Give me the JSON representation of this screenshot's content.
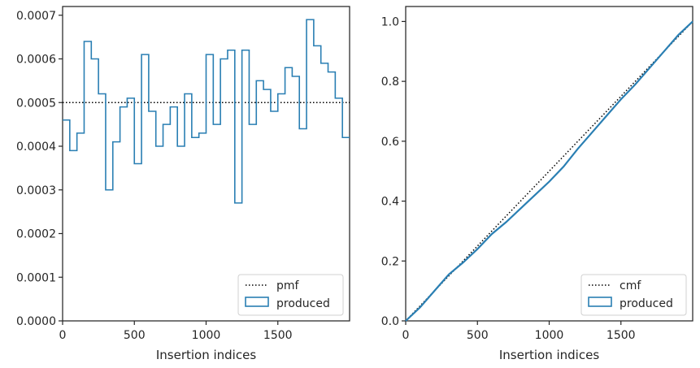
{
  "colors": {
    "produced": "#2a7fb3",
    "reference": "#000000",
    "axis": "#262626"
  },
  "chart_data": [
    {
      "type": "step",
      "xlabel": "Insertion indices",
      "ylabel": "",
      "xlim": [
        0,
        2000
      ],
      "ylim": [
        0,
        0.00072
      ],
      "xticks": [
        0,
        500,
        1000,
        1500
      ],
      "xtick_labels": [
        "0",
        "500",
        "1000",
        "1500"
      ],
      "yticks": [
        0,
        0.0001,
        0.0002,
        0.0003,
        0.0004,
        0.0005,
        0.0006,
        0.0007
      ],
      "ytick_labels": [
        "0.0000",
        "0.0001",
        "0.0002",
        "0.0003",
        "0.0004",
        "0.0005",
        "0.0006",
        "0.0007"
      ],
      "legend_position": "bottom-right",
      "reference": {
        "name": "pmf",
        "style": "dotted",
        "value": 0.0005
      },
      "series": [
        {
          "name": "produced",
          "bin_width": 50,
          "values": [
            0.00046,
            0.00039,
            0.00043,
            0.00064,
            0.0006,
            0.00052,
            0.0003,
            0.00041,
            0.00049,
            0.00051,
            0.00036,
            0.00061,
            0.00048,
            0.0004,
            0.00045,
            0.00049,
            0.0004,
            0.00052,
            0.00042,
            0.00043,
            0.00061,
            0.00045,
            0.0006,
            0.00062,
            0.00027,
            0.00062,
            0.00045,
            0.00055,
            0.00053,
            0.00048,
            0.00052,
            0.00058,
            0.00056,
            0.00044,
            0.00069,
            0.00063,
            0.00059,
            0.00057,
            0.00051,
            0.00042
          ]
        }
      ]
    },
    {
      "type": "line",
      "xlabel": "Insertion indices",
      "ylabel": "",
      "xlim": [
        0,
        2000
      ],
      "ylim": [
        0,
        1.05
      ],
      "xticks": [
        0,
        500,
        1000,
        1500
      ],
      "xtick_labels": [
        "0",
        "500",
        "1000",
        "1500"
      ],
      "yticks": [
        0,
        0.2,
        0.4,
        0.6,
        0.8,
        1.0
      ],
      "ytick_labels": [
        "0.0",
        "0.2",
        "0.4",
        "0.6",
        "0.8",
        "1.0"
      ],
      "legend_position": "bottom-right",
      "reference": {
        "name": "cmf",
        "style": "dotted",
        "x": [
          0,
          2000
        ],
        "y": [
          0,
          1.0
        ]
      },
      "series": [
        {
          "name": "produced",
          "x": [
            0,
            100,
            200,
            300,
            400,
            500,
            600,
            700,
            800,
            900,
            1000,
            1100,
            1200,
            1300,
            1400,
            1500,
            1600,
            1700,
            1800,
            1900,
            2000
          ],
          "y": [
            0,
            0.045,
            0.1,
            0.155,
            0.195,
            0.24,
            0.29,
            0.33,
            0.375,
            0.42,
            0.465,
            0.515,
            0.575,
            0.63,
            0.685,
            0.74,
            0.79,
            0.845,
            0.9,
            0.955,
            1.0
          ]
        }
      ]
    }
  ]
}
